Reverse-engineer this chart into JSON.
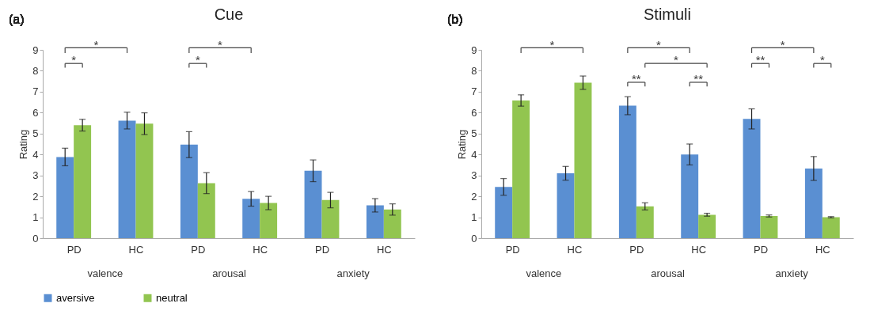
{
  "chart_data": [
    {
      "type": "bar",
      "title": "Cue",
      "ylabel": "Rating",
      "categories": [
        "PD",
        "HC",
        "PD",
        "HC",
        "PD",
        "HC"
      ],
      "ylim": [
        0,
        9
      ],
      "yticks": [
        0,
        1,
        2,
        3,
        4,
        5,
        6,
        7,
        8,
        9
      ],
      "legend": "bottom",
      "series": [
        {
          "name": "aversive",
          "color": "#5a8fd2",
          "values": [
            3.88,
            5.62,
            4.47,
            1.88,
            3.22,
            1.57
          ],
          "errors": [
            0.42,
            0.4,
            0.62,
            0.35,
            0.52,
            0.32
          ]
        },
        {
          "name": "neutral",
          "color": "#92c550",
          "values": [
            5.4,
            5.47,
            2.63,
            1.68,
            1.82,
            1.37
          ],
          "errors": [
            0.28,
            0.52,
            0.5,
            0.32,
            0.37,
            0.27
          ]
        }
      ],
      "annotations": [
        "(a)",
        "valence",
        "arousal",
        "anxiety",
        "*",
        "*",
        "*",
        "*"
      ]
    },
    {
      "type": "bar",
      "title": "Stimuli",
      "ylabel": "Rating",
      "categories": [
        "PD",
        "HC",
        "PD",
        "HC",
        "PD",
        "HC"
      ],
      "ylim": [
        0,
        9
      ],
      "yticks": [
        0,
        1,
        2,
        3,
        4,
        5,
        6,
        7,
        8,
        9
      ],
      "legend": "bottom",
      "series": [
        {
          "name": "aversive",
          "color": "#5a8fd2",
          "values": [
            2.45,
            3.1,
            6.33,
            4.0,
            5.7,
            3.33
          ],
          "errors": [
            0.4,
            0.33,
            0.43,
            0.5,
            0.48,
            0.57
          ]
        },
        {
          "name": "neutral",
          "color": "#92c550",
          "values": [
            6.58,
            7.43,
            1.52,
            1.12,
            1.06,
            1.0
          ],
          "errors": [
            0.27,
            0.32,
            0.17,
            0.07,
            0.05,
            0.03
          ]
        }
      ],
      "annotations": [
        "(b)",
        "valence",
        "arousal",
        "anxiety",
        "*",
        "*",
        "*",
        "**",
        "**",
        "*",
        "**",
        "*"
      ]
    }
  ]
}
